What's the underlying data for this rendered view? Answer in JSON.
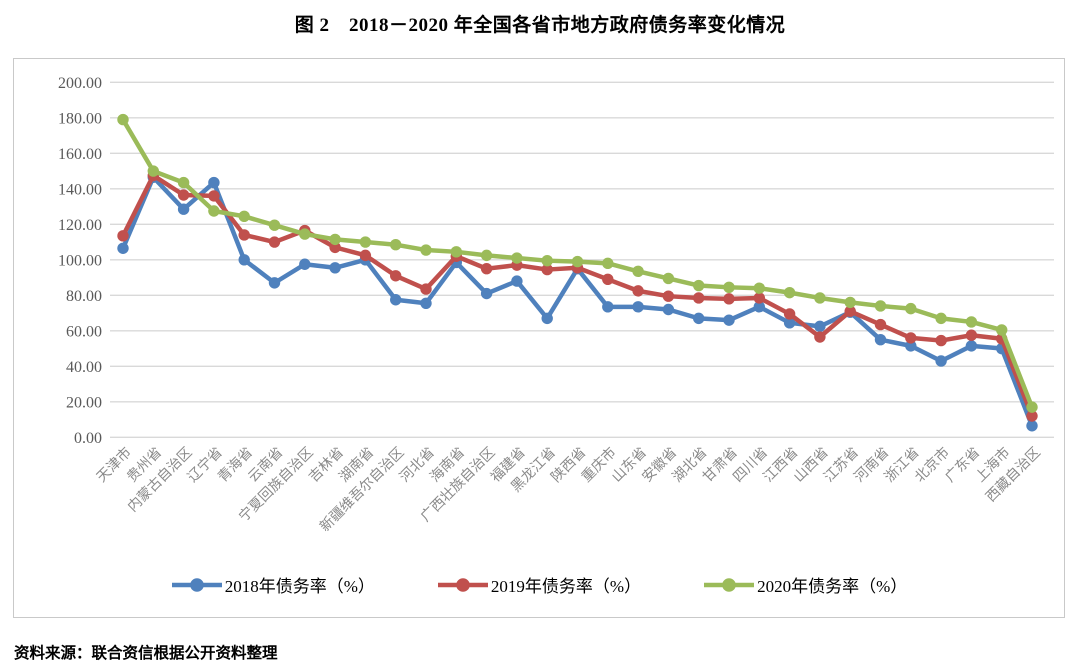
{
  "title": "图 2　2018－2020 年全国各省市地方政府债务率变化情况",
  "source_note": "资料来源：联合资信根据公开资料整理",
  "colors": {
    "series_2018": "#4F81BD",
    "series_2019": "#C0504D",
    "series_2020": "#9BBB59",
    "gridline": "#D9D9D9",
    "ytick_text": "#595959",
    "xtick_text": "#8a8a8a",
    "chart_border": "#C9C9C9"
  },
  "chart_data": {
    "type": "line",
    "title": "图 2　2018－2020 年全国各省市地方政府债务率变化情况",
    "categories": [
      "天津市",
      "贵州省",
      "内蒙古自治区",
      "辽宁省",
      "青海省",
      "云南省",
      "宁夏回族自治区",
      "吉林省",
      "湖南省",
      "新疆维吾尔自治区",
      "河北省",
      "海南省",
      "广西壮族自治区",
      "福建省",
      "黑龙江省",
      "陕西省",
      "重庆市",
      "山东省",
      "安徽省",
      "湖北省",
      "甘肃省",
      "四川省",
      "江西省",
      "山西省",
      "江苏省",
      "河南省",
      "浙江省",
      "北京市",
      "广东省",
      "上海市",
      "西藏自治区"
    ],
    "series": [
      {
        "name": "2018年债务率（%）",
        "color": "#4F81BD",
        "values": [
          106.5,
          146.5,
          128.5,
          143.5,
          100,
          87,
          97.5,
          95.5,
          100,
          77.5,
          75.5,
          98.5,
          81,
          88,
          67,
          95,
          73.5,
          73.5,
          72,
          67,
          66,
          73.5,
          64.5,
          62.5,
          70.5,
          55,
          51.5,
          43,
          51.5,
          50,
          6.5
        ]
      },
      {
        "name": "2019年债务率（%）",
        "color": "#C0504D",
        "values": [
          113.5,
          147.5,
          136.5,
          136,
          114,
          110,
          116.5,
          107,
          102.5,
          91,
          83.5,
          102,
          95,
          97,
          94.5,
          95.5,
          89,
          82.5,
          79.5,
          78.5,
          78,
          78.5,
          69.5,
          56.5,
          71,
          63.5,
          56,
          54.5,
          57.5,
          55.5,
          12
        ]
      },
      {
        "name": "2020年债务率（%）",
        "color": "#9BBB59",
        "values": [
          179,
          150,
          143.5,
          127.5,
          124.5,
          119.5,
          114.5,
          111.5,
          110,
          108.5,
          105.5,
          104.5,
          102.5,
          101,
          99.5,
          99,
          98,
          93.5,
          89.5,
          85.5,
          84.5,
          84,
          81.5,
          78.5,
          76,
          74,
          72.5,
          67,
          65,
          60.5,
          17
        ]
      }
    ],
    "ylim": [
      0,
      200
    ],
    "ytick_step": 20,
    "ytick_labels": [
      "0.00",
      "20.00",
      "40.00",
      "60.00",
      "80.00",
      "100.00",
      "120.00",
      "140.00",
      "160.00",
      "180.00",
      "200.00"
    ],
    "grid": "horizontal",
    "legend_position": "bottom",
    "xlabel": "",
    "ylabel": ""
  }
}
